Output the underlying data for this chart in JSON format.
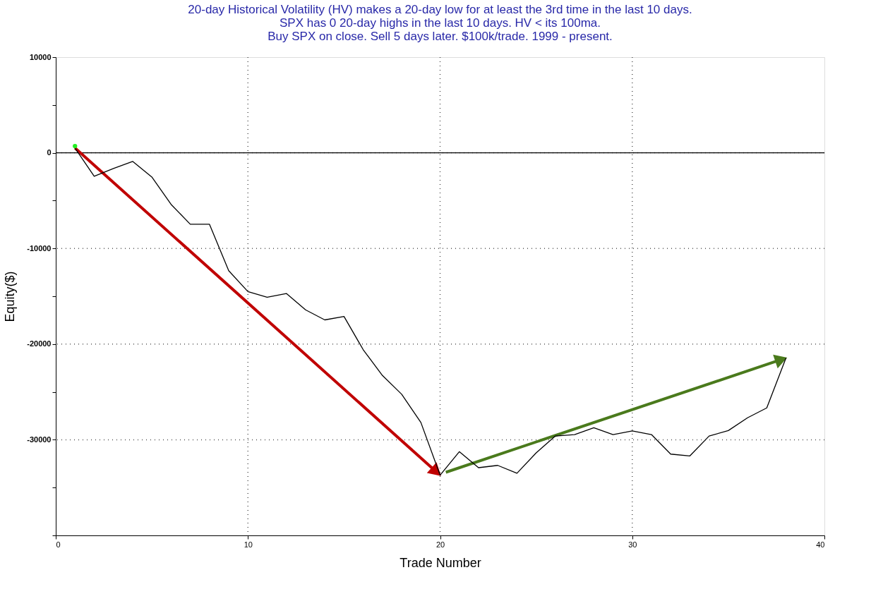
{
  "chart_data": {
    "type": "line",
    "title": [
      "20-day Historical Volatility (HV) makes a 20-day low for at least the 3rd time in the last 10 days.",
      "SPX has 0 20-day highs in the last 10 days. HV < its 100ma.",
      "Buy SPX on close. Sell 5 days later. $100k/trade. 1999 - present."
    ],
    "xlabel": "Trade Number",
    "ylabel": "Equity($)",
    "xlim": [
      0,
      40
    ],
    "xticks": [
      0,
      10,
      20,
      30,
      40
    ],
    "ylim": [
      -40000,
      10000
    ],
    "yticks": [
      {
        "value": -40000,
        "label": null
      },
      {
        "value": -35000,
        "label": null
      },
      -30000,
      {
        "value": -25000,
        "label": null
      },
      -20000,
      {
        "value": -15000,
        "label": null
      },
      -10000,
      {
        "value": -5000,
        "label": null
      },
      0,
      {
        "value": 5000,
        "label": null
      },
      10000
    ],
    "grid": true,
    "ref_lines": [
      {
        "axis": "y",
        "value": 0,
        "color": "#000000",
        "line_style": "solid"
      }
    ],
    "series": [
      {
        "color": "#000000",
        "x": [
          1,
          2,
          3,
          4,
          5,
          6,
          7,
          8,
          9,
          10,
          11,
          12,
          13,
          14,
          15,
          16,
          17,
          18,
          19,
          20,
          21,
          22,
          23,
          24,
          25,
          26,
          27,
          28,
          29,
          30,
          31,
          32,
          33,
          34,
          35,
          36,
          37,
          38
        ],
        "values": [
          500,
          -2450,
          -1640,
          -900,
          -2530,
          -5390,
          -7470,
          -7470,
          -12330,
          -14510,
          -15100,
          -14710,
          -16420,
          -17470,
          -17110,
          -20590,
          -23280,
          -25240,
          -28190,
          -33700,
          -31250,
          -32920,
          -32680,
          -33500,
          -31370,
          -29610,
          -29460,
          -28750,
          -29460,
          -29070,
          -29460,
          -31500,
          -31690,
          -29610,
          -29040,
          -27700,
          -26670,
          -21450
        ]
      },
      {
        "type": "scatter",
        "color": "#22ee22",
        "x": [
          1
        ],
        "values": [
          700
        ]
      }
    ]
  }
}
